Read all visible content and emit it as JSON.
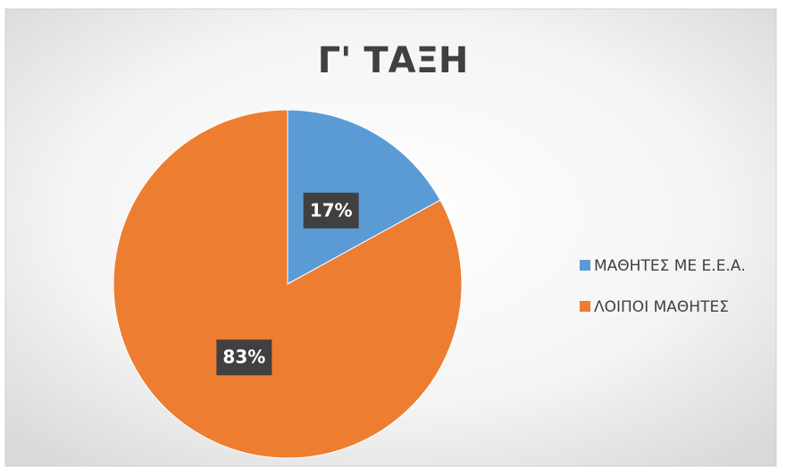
{
  "chart_data": {
    "type": "pie",
    "title": "Γ' ΤΑΞΗ",
    "categories": [
      "ΜΑΘΗΤΕΣ ΜΕ Ε.Ε.Α.",
      "ΛΟΙΠΟΙ ΜΑΘΗΤΕΣ"
    ],
    "values": [
      17,
      83
    ],
    "value_labels": [
      "17%",
      "83%"
    ],
    "colors": [
      "#5b9bd5",
      "#ed7d31"
    ],
    "legend": "right"
  }
}
